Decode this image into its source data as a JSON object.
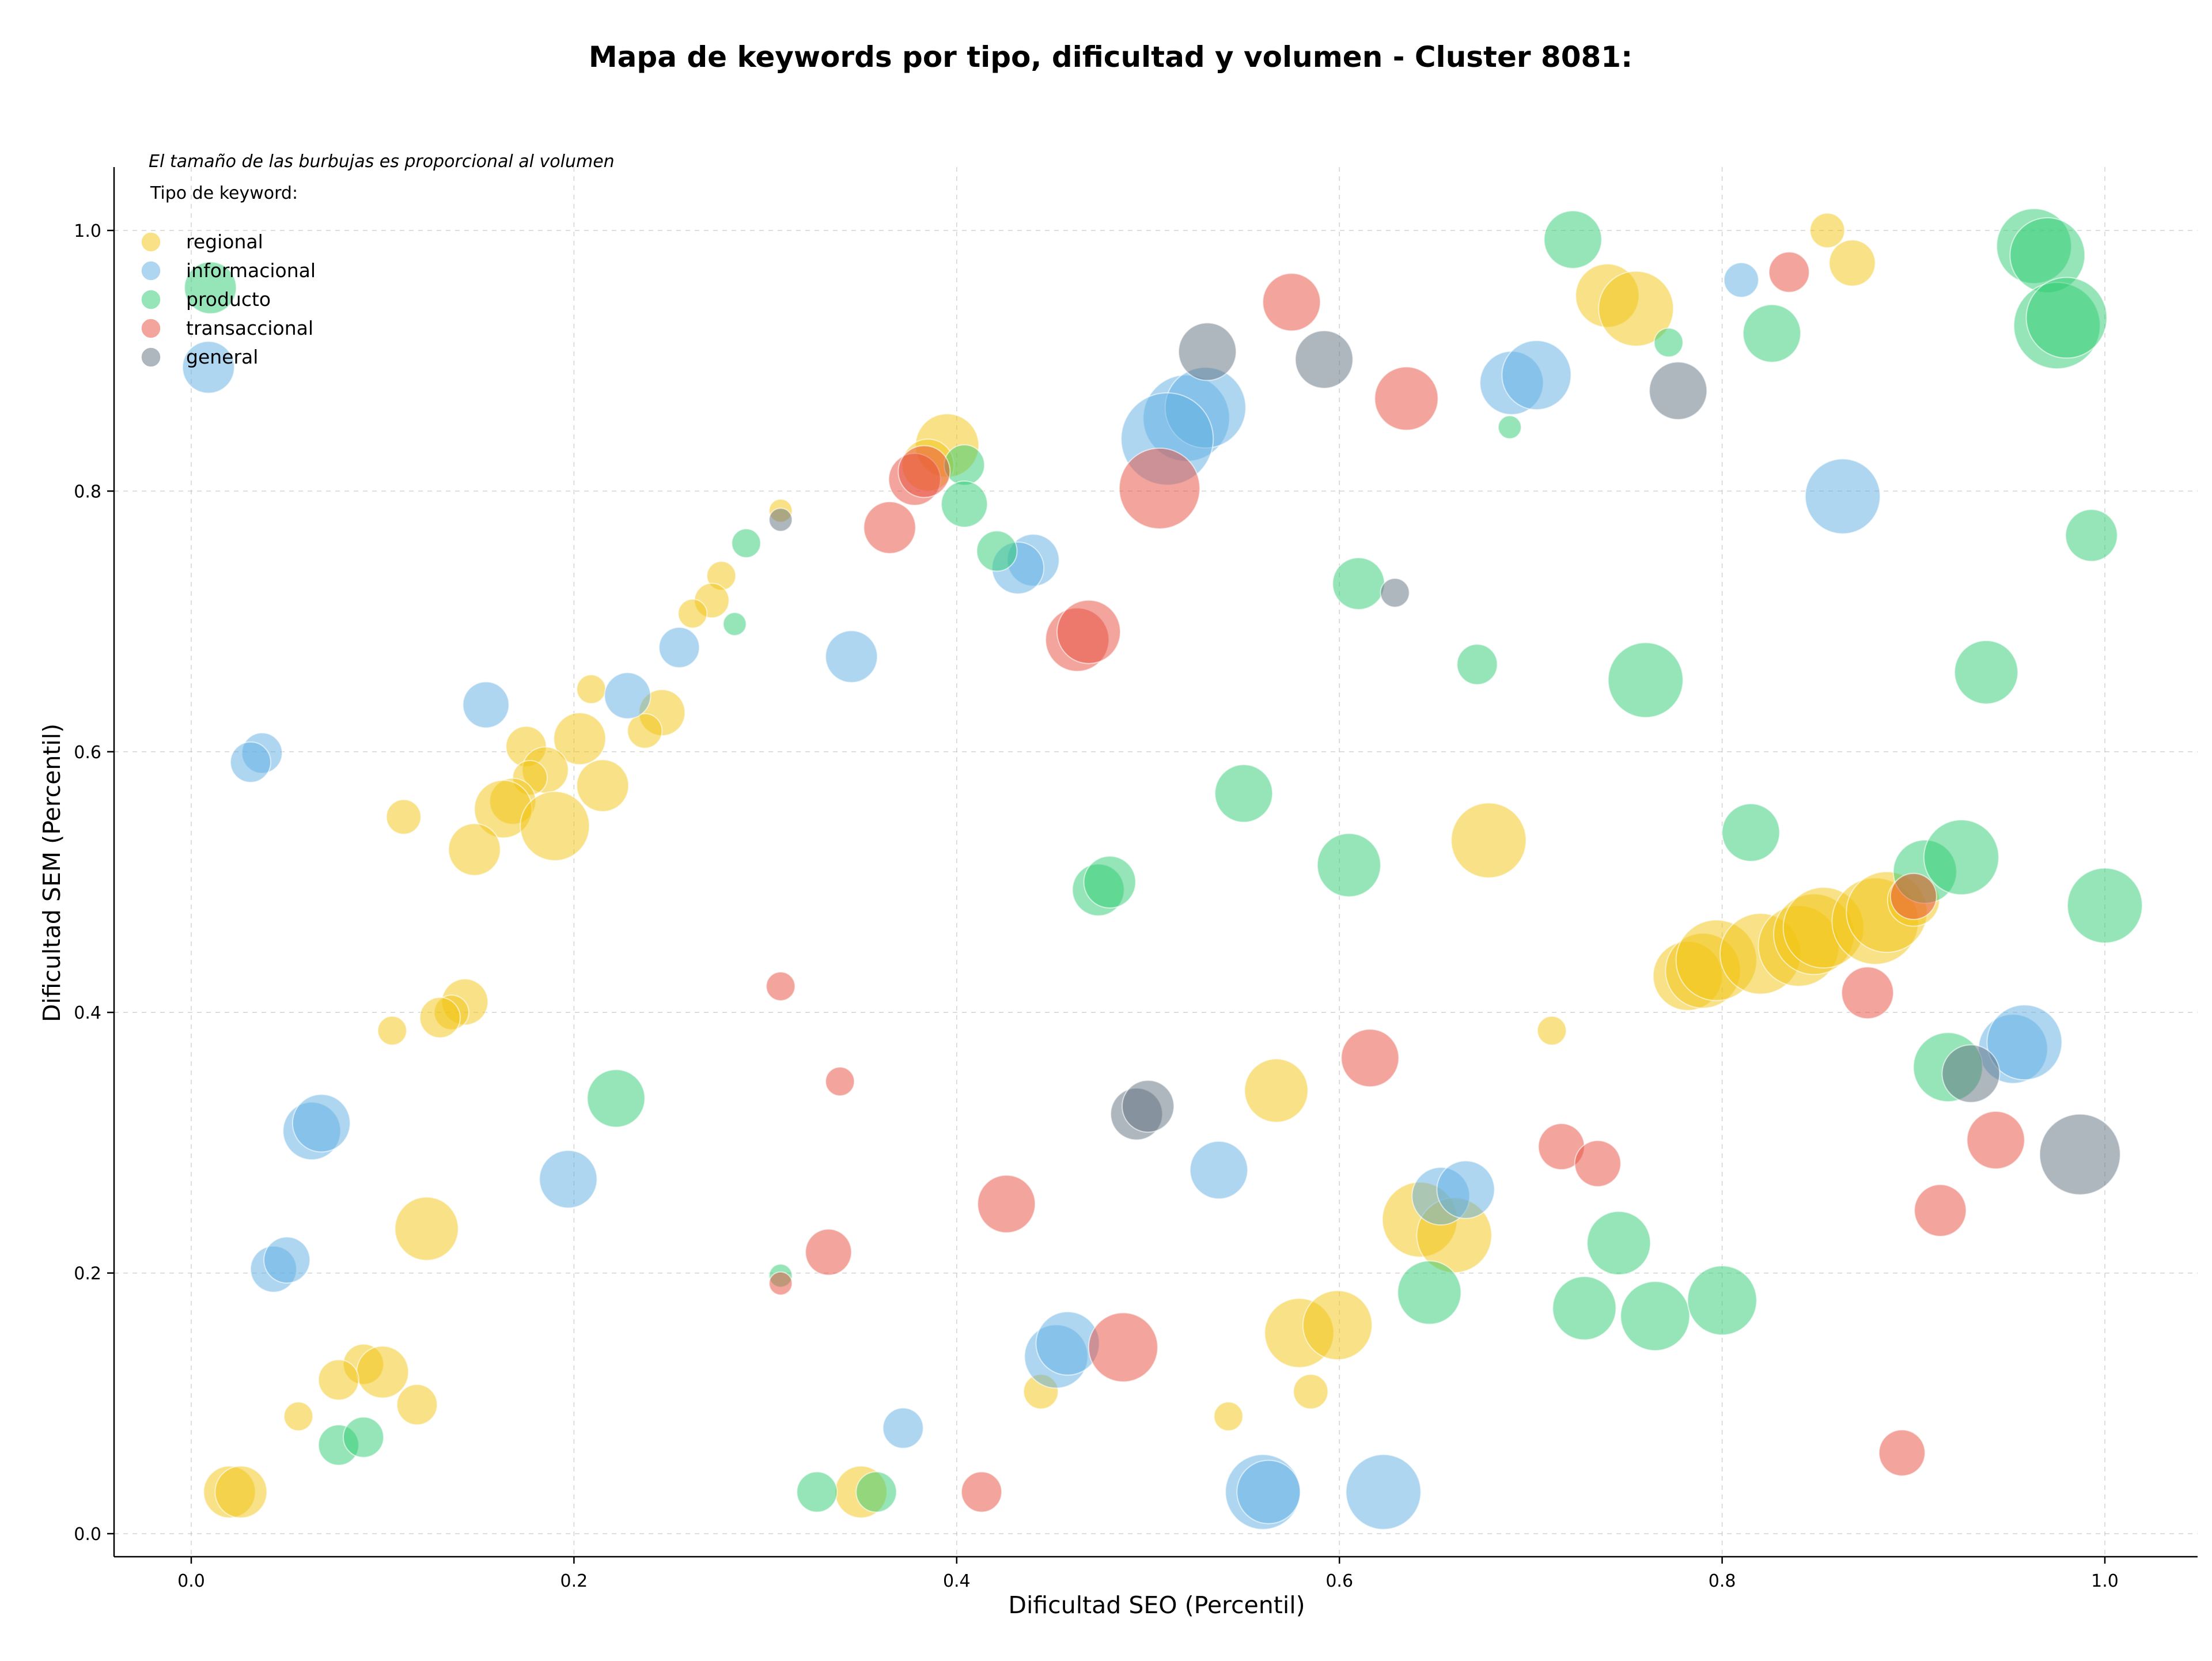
{
  "chart_data": {
    "type": "scatter",
    "title": "Mapa de keywords por tipo, dificultad y volumen - Cluster 8081:",
    "xlabel": "Dificultad SEO (Percentil)",
    "ylabel": "Dificultad SEM (Percentil)",
    "note": "El tamaño de las burbujas es proporcional al volumen",
    "legend_title": "Tipo de keyword:",
    "legend_position": "top-left",
    "grid": true,
    "xlim": [
      -0.04,
      1.05
    ],
    "ylim": [
      -0.015,
      1.05
    ],
    "xticks": [
      0.0,
      0.2,
      0.4,
      0.6,
      0.8,
      1.0
    ],
    "yticks": [
      0.0,
      0.2,
      0.4,
      0.6,
      0.8,
      1.0
    ],
    "xtick_labels": [
      "0.0",
      "0.2",
      "0.4",
      "0.6",
      "0.8",
      "1.0"
    ],
    "ytick_labels": [
      "0.0",
      "0.2",
      "0.4",
      "0.6",
      "0.8",
      "1.0"
    ],
    "series": [
      {
        "name": "regional",
        "color": "#f1c40f",
        "points": [
          [
            0.855,
            1.0,
            0.3
          ],
          [
            0.868,
            0.975,
            0.4
          ],
          [
            0.74,
            0.95,
            0.55
          ],
          [
            0.755,
            0.94,
            0.65
          ],
          [
            0.395,
            0.835,
            0.55
          ],
          [
            0.385,
            0.82,
            0.45
          ],
          [
            0.308,
            0.785,
            0.2
          ],
          [
            0.277,
            0.735,
            0.25
          ],
          [
            0.272,
            0.716,
            0.3
          ],
          [
            0.262,
            0.706,
            0.25
          ],
          [
            0.209,
            0.648,
            0.25
          ],
          [
            0.246,
            0.63,
            0.4
          ],
          [
            0.237,
            0.616,
            0.3
          ],
          [
            0.203,
            0.61,
            0.45
          ],
          [
            0.175,
            0.604,
            0.35
          ],
          [
            0.185,
            0.586,
            0.4
          ],
          [
            0.177,
            0.58,
            0.3
          ],
          [
            0.215,
            0.574,
            0.45
          ],
          [
            0.168,
            0.562,
            0.4
          ],
          [
            0.163,
            0.556,
            0.5
          ],
          [
            0.19,
            0.543,
            0.6
          ],
          [
            0.111,
            0.55,
            0.3
          ],
          [
            0.148,
            0.525,
            0.45
          ],
          [
            0.678,
            0.532,
            0.65
          ],
          [
            0.143,
            0.408,
            0.4
          ],
          [
            0.136,
            0.4,
            0.3
          ],
          [
            0.13,
            0.396,
            0.35
          ],
          [
            0.105,
            0.386,
            0.25
          ],
          [
            0.711,
            0.386,
            0.25
          ],
          [
            0.567,
            0.34,
            0.55
          ],
          [
            0.123,
            0.234,
            0.55
          ],
          [
            0.642,
            0.241,
            0.65
          ],
          [
            0.66,
            0.229,
            0.65
          ],
          [
            0.09,
            0.13,
            0.35
          ],
          [
            0.1,
            0.124,
            0.45
          ],
          [
            0.077,
            0.118,
            0.35
          ],
          [
            0.118,
            0.099,
            0.35
          ],
          [
            0.056,
            0.09,
            0.25
          ],
          [
            0.444,
            0.109,
            0.3
          ],
          [
            0.542,
            0.09,
            0.25
          ],
          [
            0.585,
            0.109,
            0.3
          ],
          [
            0.579,
            0.154,
            0.6
          ],
          [
            0.599,
            0.16,
            0.6
          ],
          [
            0.02,
            0.032,
            0.45
          ],
          [
            0.026,
            0.032,
            0.45
          ],
          [
            0.35,
            0.032,
            0.45
          ],
          [
            0.782,
            0.428,
            0.6
          ],
          [
            0.79,
            0.432,
            0.65
          ],
          [
            0.797,
            0.44,
            0.7
          ],
          [
            0.82,
            0.445,
            0.7
          ],
          [
            0.84,
            0.451,
            0.7
          ],
          [
            0.848,
            0.46,
            0.7
          ],
          [
            0.853,
            0.465,
            0.7
          ],
          [
            0.88,
            0.47,
            0.75
          ],
          [
            0.886,
            0.477,
            0.7
          ],
          [
            0.9,
            0.486,
            0.45
          ]
        ]
      },
      {
        "name": "informacional",
        "color": "#5dade2",
        "points": [
          [
            0.81,
            0.962,
            0.3
          ],
          [
            0.009,
            0.895,
            0.45
          ],
          [
            0.69,
            0.883,
            0.55
          ],
          [
            0.703,
            0.889,
            0.6
          ],
          [
            0.52,
            0.856,
            0.75
          ],
          [
            0.53,
            0.864,
            0.7
          ],
          [
            0.51,
            0.84,
            0.8
          ],
          [
            0.863,
            0.796,
            0.65
          ],
          [
            0.44,
            0.747,
            0.45
          ],
          [
            0.432,
            0.741,
            0.45
          ],
          [
            0.255,
            0.68,
            0.35
          ],
          [
            0.345,
            0.673,
            0.45
          ],
          [
            0.228,
            0.643,
            0.4
          ],
          [
            0.154,
            0.636,
            0.4
          ],
          [
            0.037,
            0.599,
            0.35
          ],
          [
            0.031,
            0.592,
            0.35
          ],
          [
            0.063,
            0.309,
            0.5
          ],
          [
            0.068,
            0.315,
            0.5
          ],
          [
            0.197,
            0.272,
            0.5
          ],
          [
            0.043,
            0.203,
            0.4
          ],
          [
            0.05,
            0.21,
            0.4
          ],
          [
            0.537,
            0.279,
            0.5
          ],
          [
            0.653,
            0.259,
            0.5
          ],
          [
            0.666,
            0.264,
            0.5
          ],
          [
            0.952,
            0.372,
            0.6
          ],
          [
            0.958,
            0.377,
            0.65
          ],
          [
            0.452,
            0.136,
            0.55
          ],
          [
            0.458,
            0.146,
            0.55
          ],
          [
            0.372,
            0.081,
            0.35
          ],
          [
            0.56,
            0.032,
            0.65
          ],
          [
            0.563,
            0.032,
            0.55
          ],
          [
            0.623,
            0.032,
            0.65
          ]
        ]
      },
      {
        "name": "producto",
        "color": "#2ecc71",
        "points": [
          [
            0.01,
            0.956,
            0.45
          ],
          [
            0.722,
            0.993,
            0.5
          ],
          [
            0.963,
            0.988,
            0.65
          ],
          [
            0.97,
            0.981,
            0.65
          ],
          [
            0.975,
            0.927,
            0.75
          ],
          [
            0.98,
            0.933,
            0.7
          ],
          [
            0.826,
            0.921,
            0.5
          ],
          [
            0.772,
            0.914,
            0.25
          ],
          [
            0.689,
            0.849,
            0.2
          ],
          [
            0.404,
            0.82,
            0.35
          ],
          [
            0.404,
            0.79,
            0.4
          ],
          [
            0.421,
            0.754,
            0.35
          ],
          [
            0.29,
            0.76,
            0.25
          ],
          [
            0.284,
            0.698,
            0.2
          ],
          [
            0.61,
            0.729,
            0.45
          ],
          [
            0.672,
            0.667,
            0.35
          ],
          [
            0.76,
            0.655,
            0.65
          ],
          [
            0.938,
            0.661,
            0.55
          ],
          [
            0.993,
            0.766,
            0.45
          ],
          [
            0.55,
            0.568,
            0.5
          ],
          [
            0.605,
            0.513,
            0.55
          ],
          [
            0.815,
            0.538,
            0.5
          ],
          [
            0.474,
            0.494,
            0.45
          ],
          [
            0.48,
            0.5,
            0.45
          ],
          [
            0.906,
            0.508,
            0.55
          ],
          [
            0.925,
            0.519,
            0.65
          ],
          [
            1.0,
            0.482,
            0.65
          ],
          [
            0.918,
            0.358,
            0.6
          ],
          [
            0.222,
            0.334,
            0.5
          ],
          [
            0.308,
            0.198,
            0.2
          ],
          [
            0.647,
            0.185,
            0.55
          ],
          [
            0.728,
            0.173,
            0.55
          ],
          [
            0.746,
            0.223,
            0.55
          ],
          [
            0.765,
            0.167,
            0.6
          ],
          [
            0.8,
            0.179,
            0.6
          ],
          [
            0.077,
            0.068,
            0.35
          ],
          [
            0.09,
            0.074,
            0.35
          ],
          [
            0.327,
            0.032,
            0.35
          ],
          [
            0.358,
            0.032,
            0.35
          ]
        ]
      },
      {
        "name": "transaccional",
        "color": "#e74c3c",
        "points": [
          [
            0.575,
            0.945,
            0.5
          ],
          [
            0.835,
            0.968,
            0.35
          ],
          [
            0.635,
            0.871,
            0.55
          ],
          [
            0.378,
            0.809,
            0.45
          ],
          [
            0.383,
            0.815,
            0.45
          ],
          [
            0.506,
            0.802,
            0.7
          ],
          [
            0.365,
            0.772,
            0.45
          ],
          [
            0.463,
            0.686,
            0.55
          ],
          [
            0.469,
            0.692,
            0.55
          ],
          [
            0.308,
            0.42,
            0.25
          ],
          [
            0.876,
            0.415,
            0.45
          ],
          [
            0.616,
            0.365,
            0.5
          ],
          [
            0.339,
            0.347,
            0.25
          ],
          [
            0.716,
            0.297,
            0.4
          ],
          [
            0.735,
            0.284,
            0.4
          ],
          [
            0.943,
            0.302,
            0.5
          ],
          [
            0.426,
            0.253,
            0.5
          ],
          [
            0.333,
            0.216,
            0.4
          ],
          [
            0.308,
            0.192,
            0.2
          ],
          [
            0.914,
            0.248,
            0.45
          ],
          [
            0.487,
            0.143,
            0.6
          ],
          [
            0.894,
            0.062,
            0.4
          ],
          [
            0.413,
            0.032,
            0.35
          ],
          [
            0.9,
            0.489,
            0.4
          ]
        ]
      },
      {
        "name": "general",
        "color": "#5d6d7e",
        "points": [
          [
            0.531,
            0.907,
            0.5
          ],
          [
            0.592,
            0.901,
            0.5
          ],
          [
            0.777,
            0.877,
            0.5
          ],
          [
            0.308,
            0.778,
            0.2
          ],
          [
            0.629,
            0.722,
            0.25
          ],
          [
            0.494,
            0.322,
            0.45
          ],
          [
            0.5,
            0.328,
            0.45
          ],
          [
            0.93,
            0.353,
            0.5
          ],
          [
            0.987,
            0.291,
            0.7
          ]
        ]
      }
    ]
  }
}
